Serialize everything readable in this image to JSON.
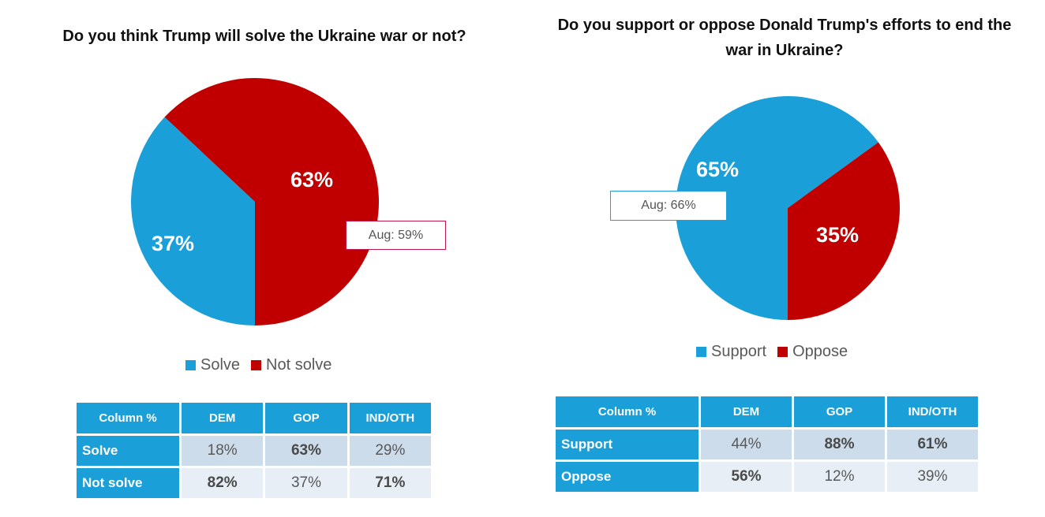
{
  "colors": {
    "blue": "#1a9fd9",
    "red": "#c00000",
    "callout_left_border": "#c0174b",
    "callout_right_border": "#1fa0d8"
  },
  "left": {
    "title": "Do you think Trump will solve the Ukraine war or not?",
    "callout": "Aug: 59%",
    "legend": [
      {
        "label": "Solve",
        "color": "#1a9fd9"
      },
      {
        "label": "Not solve",
        "color": "#c00000"
      }
    ],
    "table": {
      "header": [
        "Column %",
        "DEM",
        "GOP",
        "IND/OTH"
      ],
      "rows": [
        {
          "label": "Solve",
          "cells": [
            {
              "value": "18%",
              "bold": false
            },
            {
              "value": "63%",
              "bold": true
            },
            {
              "value": "29%",
              "bold": false
            }
          ]
        },
        {
          "label": "Not solve",
          "cells": [
            {
              "value": "82%",
              "bold": true
            },
            {
              "value": "37%",
              "bold": false
            },
            {
              "value": "71%",
              "bold": true
            }
          ]
        }
      ]
    }
  },
  "right": {
    "title": "Do you support or oppose Donald Trump's efforts to end the war in Ukraine?",
    "callout": "Aug: 66%",
    "legend": [
      {
        "label": "Support",
        "color": "#1a9fd9"
      },
      {
        "label": "Oppose",
        "color": "#c00000"
      }
    ],
    "table": {
      "header": [
        "Column %",
        "DEM",
        "GOP",
        "IND/OTH"
      ],
      "rows": [
        {
          "label": "Support",
          "cells": [
            {
              "value": "44%",
              "bold": false
            },
            {
              "value": "88%",
              "bold": true
            },
            {
              "value": "61%",
              "bold": true
            }
          ]
        },
        {
          "label": "Oppose",
          "cells": [
            {
              "value": "56%",
              "bold": true
            },
            {
              "value": "12%",
              "bold": false
            },
            {
              "value": "39%",
              "bold": false
            }
          ]
        }
      ]
    }
  },
  "chart_data": [
    {
      "type": "pie",
      "title": "Do you think Trump will solve the Ukraine war or not?",
      "categories": [
        "Solve",
        "Not solve"
      ],
      "values": [
        37,
        63
      ],
      "value_labels": [
        "37%",
        "63%"
      ],
      "colors": [
        "#1a9fd9",
        "#c00000"
      ],
      "legend": "bottom",
      "annotations": [
        "Aug: 59%"
      ]
    },
    {
      "type": "pie",
      "title": "Do you support or oppose Donald Trump's efforts to end the war in Ukraine?",
      "categories": [
        "Support",
        "Oppose"
      ],
      "values": [
        65,
        35
      ],
      "value_labels": [
        "65%",
        "35%"
      ],
      "colors": [
        "#1a9fd9",
        "#c00000"
      ],
      "legend": "bottom",
      "annotations": [
        "Aug: 66%"
      ]
    }
  ]
}
